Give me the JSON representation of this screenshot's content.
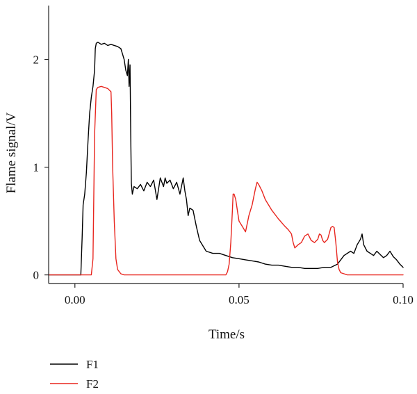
{
  "chart_data": {
    "type": "line",
    "title": "",
    "xlabel": "Time/s",
    "ylabel": "Flame signal/V",
    "xlim": [
      -0.008,
      0.1
    ],
    "ylim": [
      -0.08,
      2.5
    ],
    "xticks": [
      0.0,
      0.05,
      0.1
    ],
    "xtick_labels": [
      "0.00",
      "0.05",
      "0.10"
    ],
    "yticks": [
      0,
      1,
      2
    ],
    "ytick_labels": [
      "0",
      "1",
      "2"
    ],
    "grid": false,
    "legend_placement": "bottom-left",
    "series": [
      {
        "name": "F1",
        "color": "#000000",
        "x": [
          -0.008,
          0.0018,
          0.0022,
          0.0025,
          0.003,
          0.0035,
          0.004,
          0.0045,
          0.005,
          0.0055,
          0.006,
          0.0062,
          0.0065,
          0.007,
          0.008,
          0.009,
          0.01,
          0.011,
          0.012,
          0.013,
          0.014,
          0.0145,
          0.015,
          0.0155,
          0.016,
          0.0163,
          0.0165,
          0.0168,
          0.017,
          0.0172,
          0.0175,
          0.018,
          0.019,
          0.02,
          0.021,
          0.022,
          0.023,
          0.024,
          0.025,
          0.026,
          0.027,
          0.0275,
          0.028,
          0.029,
          0.03,
          0.031,
          0.032,
          0.033,
          0.0335,
          0.034,
          0.0345,
          0.035,
          0.036,
          0.037,
          0.038,
          0.039,
          0.04,
          0.042,
          0.044,
          0.046,
          0.048,
          0.05,
          0.052,
          0.054,
          0.056,
          0.058,
          0.06,
          0.062,
          0.064,
          0.066,
          0.068,
          0.07,
          0.072,
          0.074,
          0.076,
          0.078,
          0.08,
          0.082,
          0.084,
          0.085,
          0.086,
          0.087,
          0.0875,
          0.088,
          0.089,
          0.09,
          0.091,
          0.092,
          0.093,
          0.094,
          0.095,
          0.096,
          0.097,
          0.098,
          0.099,
          0.1
        ],
        "y": [
          0.0,
          0.0,
          0.35,
          0.65,
          0.75,
          0.95,
          1.25,
          1.5,
          1.65,
          1.75,
          1.9,
          2.1,
          2.15,
          2.16,
          2.14,
          2.15,
          2.13,
          2.14,
          2.13,
          2.12,
          2.1,
          2.05,
          2.0,
          1.9,
          1.85,
          2.0,
          1.75,
          1.95,
          1.3,
          0.85,
          0.75,
          0.82,
          0.8,
          0.84,
          0.78,
          0.86,
          0.82,
          0.88,
          0.7,
          0.9,
          0.82,
          0.9,
          0.85,
          0.88,
          0.8,
          0.86,
          0.75,
          0.9,
          0.78,
          0.7,
          0.55,
          0.62,
          0.6,
          0.45,
          0.32,
          0.27,
          0.22,
          0.2,
          0.2,
          0.18,
          0.16,
          0.15,
          0.14,
          0.13,
          0.12,
          0.1,
          0.09,
          0.09,
          0.08,
          0.07,
          0.07,
          0.06,
          0.06,
          0.06,
          0.07,
          0.07,
          0.1,
          0.18,
          0.22,
          0.2,
          0.28,
          0.33,
          0.38,
          0.28,
          0.22,
          0.2,
          0.18,
          0.22,
          0.19,
          0.16,
          0.18,
          0.22,
          0.17,
          0.14,
          0.1,
          0.07
        ]
      },
      {
        "name": "F2",
        "color": "#e8261f",
        "x": [
          -0.008,
          0.005,
          0.0055,
          0.006,
          0.0065,
          0.007,
          0.008,
          0.009,
          0.01,
          0.011,
          0.0112,
          0.0115,
          0.012,
          0.0125,
          0.013,
          0.014,
          0.015,
          0.046,
          0.0465,
          0.047,
          0.0475,
          0.048,
          0.0482,
          0.0485,
          0.049,
          0.0495,
          0.05,
          0.051,
          0.052,
          0.053,
          0.054,
          0.055,
          0.0555,
          0.056,
          0.057,
          0.058,
          0.06,
          0.062,
          0.064,
          0.065,
          0.066,
          0.0665,
          0.067,
          0.068,
          0.069,
          0.07,
          0.071,
          0.072,
          0.073,
          0.074,
          0.0745,
          0.075,
          0.0755,
          0.076,
          0.077,
          0.078,
          0.0785,
          0.079,
          0.0795,
          0.08,
          0.0805,
          0.081,
          0.082,
          0.083,
          0.084,
          0.1
        ],
        "y": [
          0.0,
          0.0,
          0.15,
          1.3,
          1.72,
          1.74,
          1.75,
          1.74,
          1.73,
          1.7,
          1.5,
          1.0,
          0.5,
          0.15,
          0.05,
          0.01,
          0.0,
          0.0,
          0.03,
          0.1,
          0.3,
          0.6,
          0.75,
          0.75,
          0.7,
          0.6,
          0.5,
          0.45,
          0.4,
          0.55,
          0.65,
          0.8,
          0.86,
          0.84,
          0.78,
          0.7,
          0.6,
          0.52,
          0.45,
          0.42,
          0.38,
          0.3,
          0.25,
          0.28,
          0.3,
          0.36,
          0.38,
          0.32,
          0.3,
          0.33,
          0.38,
          0.37,
          0.32,
          0.3,
          0.33,
          0.44,
          0.45,
          0.44,
          0.3,
          0.12,
          0.05,
          0.02,
          0.01,
          0.0,
          0.0,
          0.0
        ]
      }
    ]
  }
}
